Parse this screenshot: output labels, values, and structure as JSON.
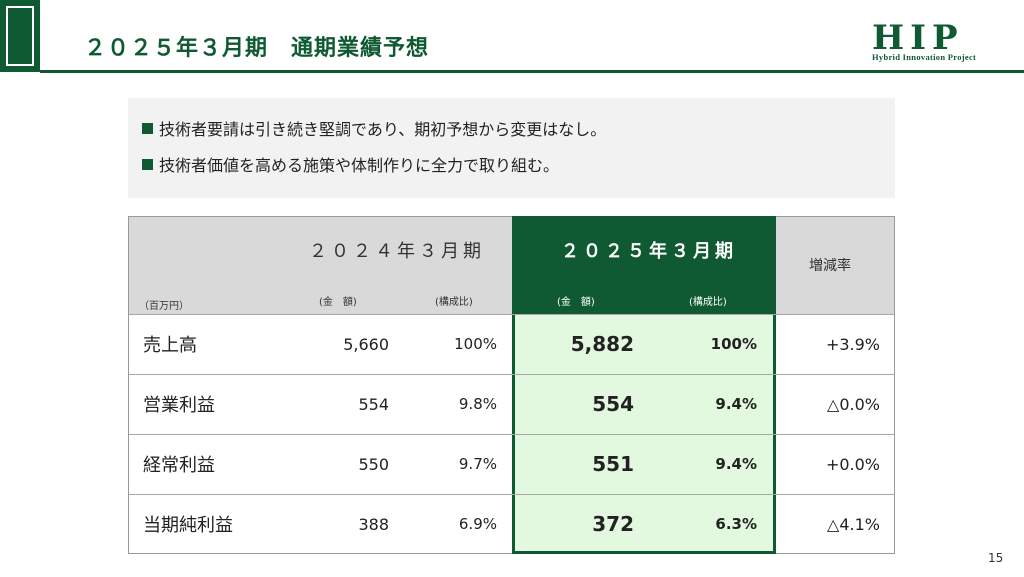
{
  "header": {
    "title": "２０２５年３月期　通期業績予想",
    "logo_text": "HIP",
    "logo_subtitle": "Hybrid Innovation Project"
  },
  "bullets": [
    "技術者要請は引き続き堅調であり、期初予想から変更はなし。",
    "技術者価値を高める施策や体制作りに全力で取り組む。"
  ],
  "table": {
    "unit": "（百万円）",
    "col_2024": "２０２４年３月期",
    "col_2025": "２０２５年３月期",
    "col_change": "増減率",
    "sub_amount": "(金　額)",
    "sub_ratio": "(構成比)",
    "rows": [
      {
        "label": "売上高",
        "v24": "5,660",
        "r24": "100%",
        "v25": "5,882",
        "r25": "100%",
        "chg": "+3.9%"
      },
      {
        "label": "営業利益",
        "v24": "554",
        "r24": "9.8%",
        "v25": "554",
        "r25": "9.4%",
        "chg": "△0.0%"
      },
      {
        "label": "経常利益",
        "v24": "550",
        "r24": "9.7%",
        "v25": "551",
        "r25": "9.4%",
        "chg": "+0.0%"
      },
      {
        "label": "当期純利益",
        "v24": "388",
        "r24": "6.9%",
        "v25": "372",
        "r25": "6.3%",
        "chg": "△4.1%"
      }
    ]
  },
  "page_number": "15",
  "colors": {
    "brand_green": "#0f5a32",
    "highlight_bg": "#e3f9df",
    "header_gray": "#d9d9d9"
  }
}
